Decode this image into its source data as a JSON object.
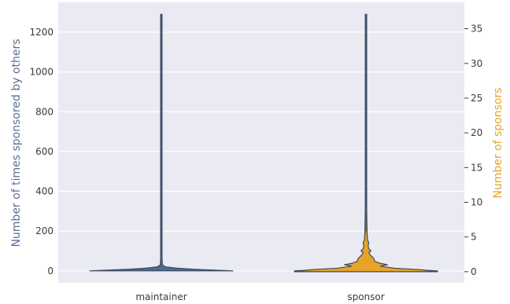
{
  "chart_data": {
    "type": "violin",
    "categories": [
      "maintainer",
      "sponsor"
    ],
    "grid": true,
    "left_axis": {
      "label": "Number of times sponsored by others",
      "color": "#5a7191",
      "ylim": [
        -60,
        1350
      ],
      "ticks": [
        0,
        200,
        400,
        600,
        800,
        1000,
        1200
      ],
      "tick_labels": [
        "0",
        "200",
        "400",
        "600",
        "800",
        "1000",
        "1200"
      ]
    },
    "right_axis": {
      "label": "Number of sponsors",
      "color": "#e6a528",
      "ylim": [
        -1.6,
        38.8
      ],
      "ticks": [
        0,
        5,
        10,
        15,
        20,
        25,
        30,
        35
      ],
      "tick_labels": [
        "0",
        "5",
        "10",
        "15",
        "20",
        "25",
        "30",
        "35"
      ]
    },
    "series": [
      {
        "axis": "left",
        "color": "#4c6a8f",
        "violins": [
          {
            "category": "maintainer",
            "min": 0,
            "max": 1290,
            "profile": [
              [
                0,
                1.0
              ],
              [
                4,
                0.75
              ],
              [
                8,
                0.45
              ],
              [
                14,
                0.2
              ],
              [
                20,
                0.06
              ],
              [
                30,
                0.015
              ],
              [
                60,
                0.01
              ],
              [
                1290,
                0.01
              ]
            ]
          },
          {
            "category": "sponsor",
            "min": 0,
            "max": 1290,
            "profile": [
              [
                0,
                1.0
              ],
              [
                6,
                0.7
              ],
              [
                12,
                0.4
              ],
              [
                20,
                0.2
              ],
              [
                30,
                0.1
              ],
              [
                45,
                0.05
              ],
              [
                100,
                0.02
              ],
              [
                300,
                0.01
              ],
              [
                1290,
                0.01
              ]
            ]
          }
        ]
      },
      {
        "axis": "right",
        "color": "#e6a528",
        "violins": [
          {
            "category": "sponsor",
            "min": 0,
            "max": 7.5,
            "profile": [
              [
                0,
                1.0
              ],
              [
                0.3,
                0.75
              ],
              [
                0.5,
                0.4
              ],
              [
                0.8,
                0.2
              ],
              [
                1.0,
                0.3
              ],
              [
                1.2,
                0.2
              ],
              [
                1.5,
                0.12
              ],
              [
                1.9,
                0.11
              ],
              [
                2.1,
                0.09
              ],
              [
                2.4,
                0.06
              ],
              [
                2.8,
                0.04
              ],
              [
                3.0,
                0.07
              ],
              [
                3.3,
                0.04
              ],
              [
                3.7,
                0.03
              ],
              [
                4.2,
                0.04
              ],
              [
                4.6,
                0.02
              ],
              [
                5.0,
                0.02
              ],
              [
                5.5,
                0.015
              ],
              [
                6.0,
                0.01
              ],
              [
                7.5,
                0.005
              ]
            ]
          }
        ]
      }
    ]
  }
}
